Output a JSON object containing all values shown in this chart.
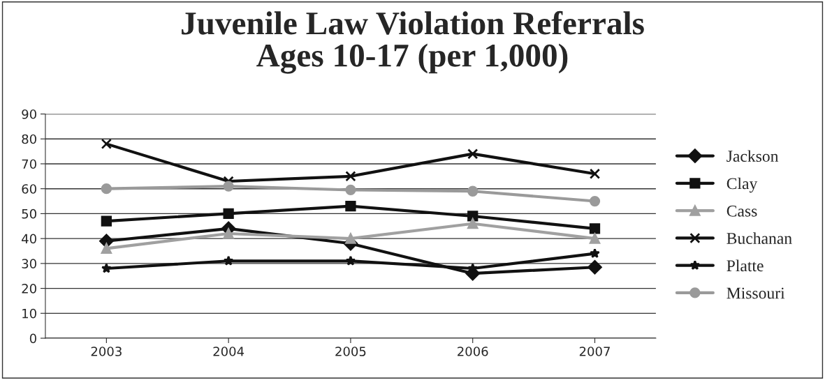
{
  "chart_data": {
    "type": "line",
    "title": "Juvenile Law Violation Referrals\nAges 10-17 (per 1,000)",
    "categories": [
      "2003",
      "2004",
      "2005",
      "2006",
      "2007"
    ],
    "series": [
      {
        "name": "Jackson",
        "color": "#111111",
        "marker": "diamond",
        "values": [
          39,
          44,
          38,
          26,
          28.5
        ]
      },
      {
        "name": "Clay",
        "color": "#111111",
        "marker": "square",
        "values": [
          47,
          50,
          53,
          49,
          44
        ]
      },
      {
        "name": "Cass",
        "color": "#a0a0a0",
        "marker": "triangle",
        "values": [
          36,
          42,
          40,
          46,
          40
        ]
      },
      {
        "name": "Buchanan",
        "color": "#111111",
        "marker": "cross",
        "values": [
          78,
          63,
          65,
          74,
          66
        ]
      },
      {
        "name": "Platte",
        "color": "#111111",
        "marker": "star",
        "values": [
          28,
          31,
          31,
          28,
          34
        ]
      },
      {
        "name": "Missouri",
        "color": "#9a9a9a",
        "marker": "circle",
        "values": [
          60,
          61,
          59.5,
          59,
          55
        ]
      }
    ],
    "ylim": [
      0,
      90
    ],
    "yticks": [
      0,
      10,
      20,
      30,
      40,
      50,
      60,
      70,
      80,
      90
    ],
    "grid": "y",
    "legend": "right"
  }
}
